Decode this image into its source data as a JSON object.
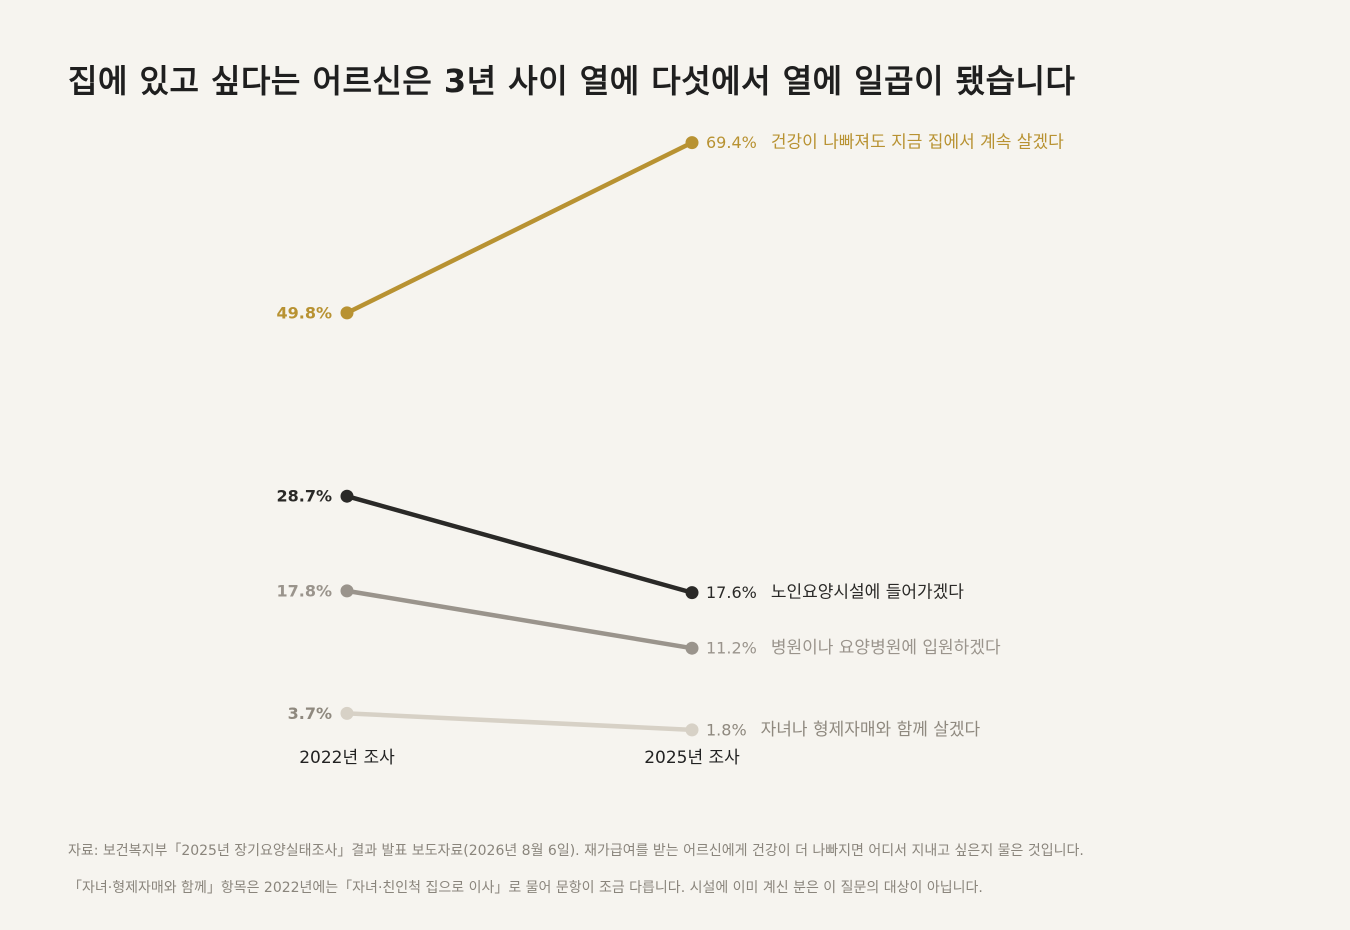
{
  "title": "집에 있고 싶다는 어르신은 3년 사이 열에 다섯에서 열에 일곱이 됐습니다",
  "chart_data": {
    "type": "line",
    "x": [
      "2022년 조사",
      "2025년 조사"
    ],
    "ylim": [
      0,
      75
    ],
    "grid": false,
    "legend": "direct-labels-right",
    "series": [
      {
        "name": "건강이 나빠져도 지금 집에서 계속 살겠다",
        "values": [
          49.8,
          69.4
        ],
        "labels": [
          "49.8%",
          "69.4%"
        ],
        "color": "#b89232"
      },
      {
        "name": "노인요양시설에 들어가겠다",
        "values": [
          28.7,
          17.6
        ],
        "labels": [
          "28.7%",
          "17.6%"
        ],
        "color": "#2a2927"
      },
      {
        "name": "병원이나 요양병원에 입원하겠다",
        "values": [
          17.8,
          11.2
        ],
        "labels": [
          "17.8%",
          "11.2%"
        ],
        "color": "#9a948c"
      },
      {
        "name": "자녀나 형제자매와 함께 살겠다",
        "values": [
          3.7,
          1.8
        ],
        "labels": [
          "3.7%",
          "1.8%"
        ],
        "color": "#d7d1c6"
      }
    ]
  },
  "notes": [
    "자료: 보건복지부「2025년 장기요양실태조사」결과 발표 보도자료(2026년 8월 6일). 재가급여를 받는 어르신에게 건강이 더 나빠지면 어디서 지내고 싶은지 물은 것입니다.",
    "「자녀·형제자매와 함께」항목은 2022년에는「자녀·친인척 집으로 이사」로 물어 문항이 조금 다릅니다. 시설에 이미 계신 분은 이 질문의 대상이 아닙니다."
  ]
}
